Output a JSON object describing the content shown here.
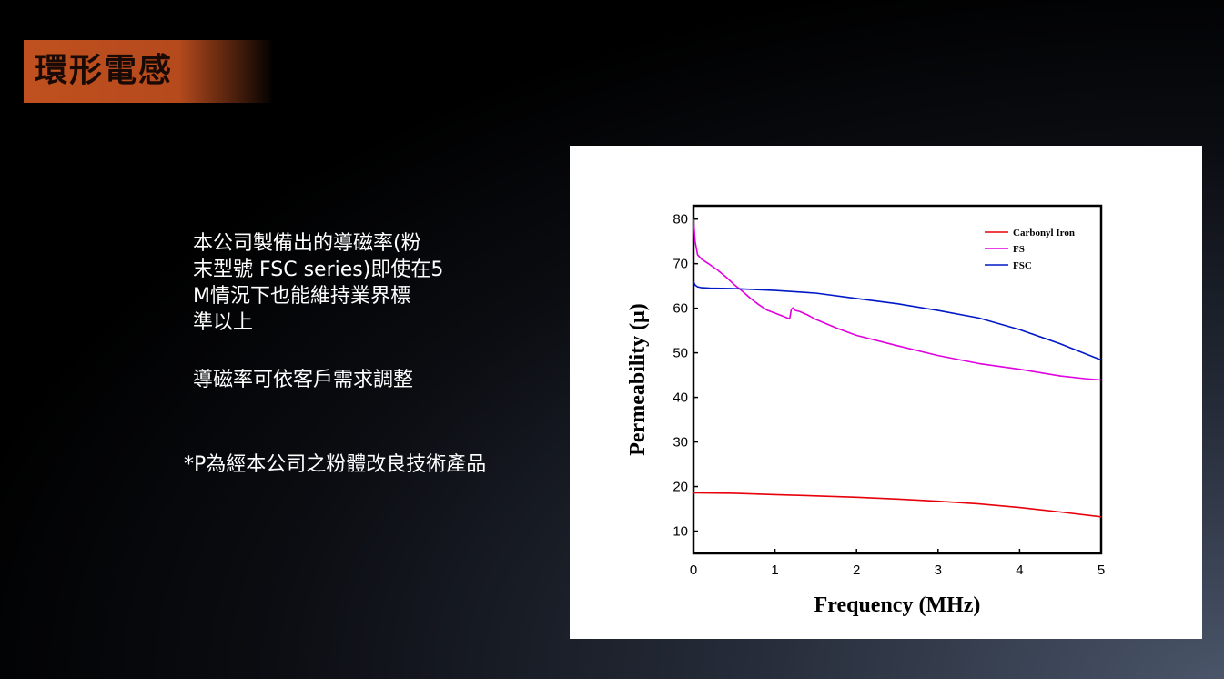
{
  "title": "環形電感",
  "description": {
    "line1": "本公司製備出的導磁率(粉",
    "line2": "末型號 FSC series)即使在5",
    "line3": "M情況下也能維持業界標",
    "line4": "準以上",
    "line5": "導磁率可依客戶需求調整"
  },
  "note": "*P為經本公司之粉體改良技術產品",
  "chart_data": {
    "type": "line",
    "xlabel": "Frequency (MHz)",
    "ylabel": "Permeability (μ)",
    "xlim": [
      0,
      5
    ],
    "ylim": [
      5,
      83
    ],
    "xticks": [
      "0",
      "1",
      "2",
      "3",
      "4",
      "5"
    ],
    "yticks": [
      "10",
      "20",
      "30",
      "40",
      "50",
      "60",
      "70",
      "80"
    ],
    "legend_position": "top-right",
    "series": [
      {
        "name": "Carbonyl Iron",
        "color": "#e8000b",
        "x": [
          0,
          0.5,
          1,
          1.5,
          2,
          2.5,
          3,
          3.5,
          4,
          4.5,
          5
        ],
        "y": [
          18.6,
          18.5,
          18.2,
          17.9,
          17.6,
          17.2,
          16.7,
          16.1,
          15.3,
          14.3,
          13.2
        ]
      },
      {
        "name": "FS",
        "color": "#e000e0",
        "x": [
          0,
          0.02,
          0.05,
          0.1,
          0.2,
          0.3,
          0.4,
          0.5,
          0.6,
          0.7,
          0.8,
          0.9,
          1.0,
          1.1,
          1.18,
          1.2,
          1.22,
          1.25,
          1.3,
          1.4,
          1.5,
          1.75,
          2.0,
          2.5,
          3.0,
          3.5,
          4.0,
          4.5,
          4.8,
          5.0
        ],
        "y": [
          80,
          75,
          72,
          71,
          69.8,
          68.5,
          67,
          65.3,
          63.8,
          62.2,
          60.8,
          59.6,
          58.9,
          58.2,
          57.6,
          59.7,
          60.1,
          59.5,
          59.3,
          58.5,
          57.5,
          55.6,
          53.9,
          51.6,
          49.4,
          47.6,
          46.3,
          44.8,
          44.2,
          43.9
        ]
      },
      {
        "name": "FSC",
        "color": "#0018c8",
        "x": [
          0,
          0.02,
          0.05,
          0.1,
          0.2,
          0.5,
          1.0,
          1.5,
          2.0,
          2.5,
          3.0,
          3.5,
          4.0,
          4.5,
          5.0
        ],
        "y": [
          66,
          65.2,
          64.8,
          64.6,
          64.5,
          64.4,
          64.0,
          63.4,
          62.2,
          61.0,
          59.5,
          57.8,
          55.2,
          52.0,
          48.4
        ]
      }
    ]
  }
}
